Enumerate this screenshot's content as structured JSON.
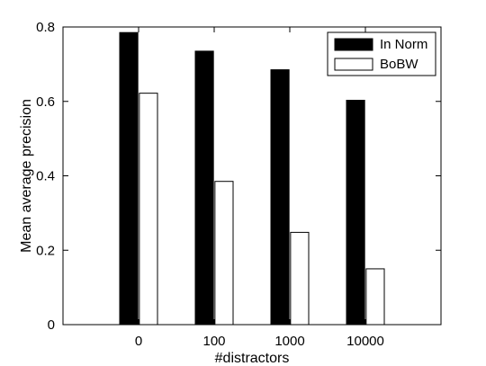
{
  "chart_data": {
    "type": "bar",
    "categories": [
      "0",
      "100",
      "1000",
      "10000"
    ],
    "series": [
      {
        "name": "In Norm",
        "values": [
          0.785,
          0.735,
          0.685,
          0.603
        ],
        "color": "#000000"
      },
      {
        "name": "BoBW",
        "values": [
          0.622,
          0.385,
          0.248,
          0.15
        ],
        "color": "#ffffff"
      }
    ],
    "xlabel": "#distractors",
    "ylabel": "Mean average precision",
    "ylim": [
      0,
      0.8
    ],
    "yticks": [
      "0",
      "0.2",
      "0.4",
      "0.6",
      "0.8"
    ],
    "grid": false,
    "legend_position": "top-right"
  }
}
